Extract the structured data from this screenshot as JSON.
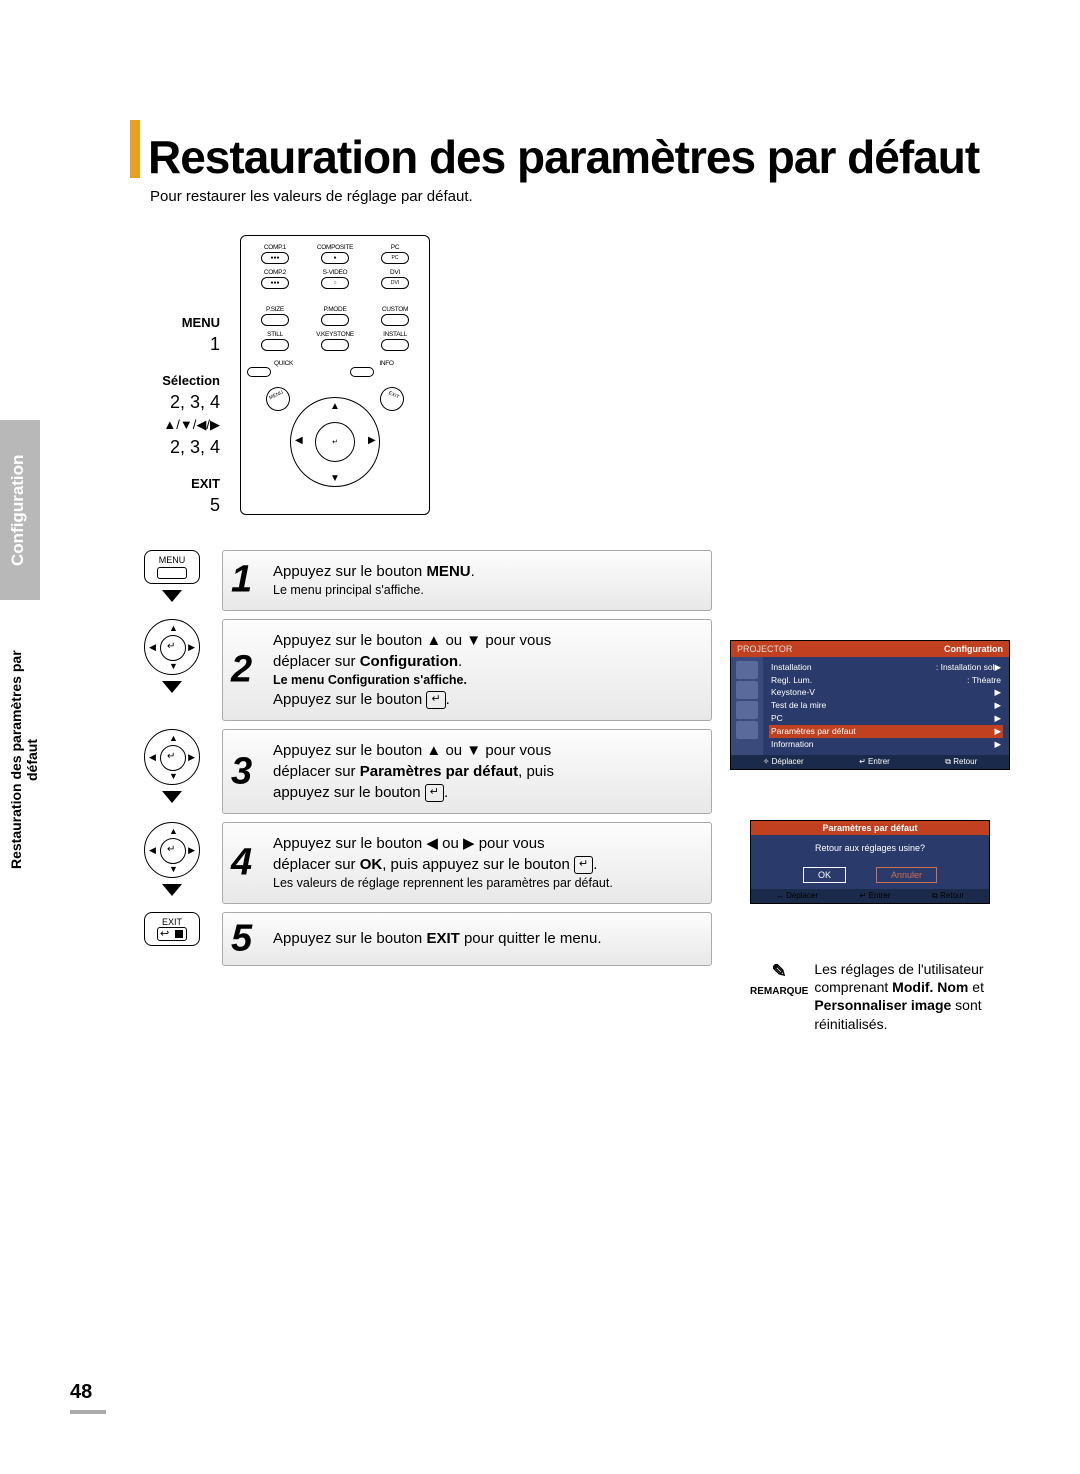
{
  "page": {
    "title": "Restauration des paramètres par défaut",
    "subtitle": "Pour restaurer les valeurs de réglage par défaut.",
    "number": "48"
  },
  "side_tabs": {
    "gray": "Configuration",
    "black": "Restauration des paramètres par défaut"
  },
  "remote_labels": {
    "menu": "MENU",
    "menu_num": "1",
    "selection": "Sélection",
    "selection_num": "2, 3, 4",
    "arrows": "▲/▼/◀/▶",
    "arrows_num": "2, 3, 4",
    "exit": "EXIT",
    "exit_num": "5"
  },
  "remote_buttons": {
    "row1": [
      "COMP.1",
      "COMPOSITE",
      "PC"
    ],
    "row2": [
      "COMP.2",
      "S-VIDEO",
      "DVI"
    ],
    "row3": [
      "P.SIZE",
      "P.MODE",
      "CUSTOM"
    ],
    "row4": [
      "STILL",
      "V.KEYSTONE",
      "INSTALL"
    ],
    "small": [
      "QUICK",
      "INFO"
    ],
    "side_left": "MENU",
    "side_right": "EXIT",
    "row1_inner": [
      "",
      "●",
      "PC"
    ],
    "row2_inner": [
      "",
      "○",
      "DVI"
    ]
  },
  "steps": [
    {
      "num": "1",
      "icon_label": "MENU",
      "line1_pre": "Appuyez sur le bouton ",
      "line1_bold": "MENU",
      "line1_post": ".",
      "small": "Le menu principal s'affiche."
    },
    {
      "num": "2",
      "line1": "Appuyez sur le bouton ▲ ou ▼ pour vous",
      "line2_pre": "déplacer sur ",
      "line2_bold": "Configuration",
      "line2_post": ".",
      "small": "Le menu Configuration s'affiche.",
      "line3": "Appuyez sur le bouton "
    },
    {
      "num": "3",
      "line1": "Appuyez sur le bouton ▲ ou ▼ pour vous",
      "line2_pre": "déplacer sur ",
      "line2_bold": "Paramètres par défaut",
      "line2_post": ", puis",
      "line3": "appuyez sur le bouton "
    },
    {
      "num": "4",
      "line1": "Appuyez sur le bouton ◀ ou ▶ pour vous",
      "line2_pre": "déplacer sur ",
      "line2_bold": "OK",
      "line2_post": ", puis appuyez sur le bouton ",
      "small": "Les valeurs de réglage reprennent les paramètres par défaut."
    },
    {
      "num": "5",
      "icon_label": "EXIT",
      "line1_pre": "Appuyez sur le bouton ",
      "line1_bold": "EXIT",
      "line1_post": " pour quitter le menu."
    }
  ],
  "osd1": {
    "header_left": "PROJECTOR",
    "header_right": "Configuration",
    "items": [
      {
        "l": "Installation",
        "r": ": Installation sol▶"
      },
      {
        "l": "Regl. Lum.",
        "r": ": Théatre"
      },
      {
        "l": "Keystone-V",
        "r": "▶"
      },
      {
        "l": "Test de la mire",
        "r": "▶"
      },
      {
        "l": "PC",
        "r": "▶"
      },
      {
        "l": "Paramètres par défaut",
        "r": "▶",
        "hl": true
      },
      {
        "l": "Information",
        "r": "▶"
      }
    ],
    "footer": [
      "✧ Déplacer",
      "↵ Entrer",
      "⧉ Retour"
    ]
  },
  "osd2": {
    "title": "Paramètres par défaut",
    "body": "Retour aux réglages usine?",
    "ok": "OK",
    "cancel": "Annuler",
    "footer": [
      "↔ Déplacer",
      "↵ Entrer",
      "⧉ Retour"
    ]
  },
  "remark": {
    "label": "REMARQUE",
    "icon": "✎",
    "text_pre": "Les réglages de l'utilisateur comprenant ",
    "bold1": "Modif. Nom",
    "mid": " et ",
    "bold2": "Personnaliser image",
    "text_post": " sont réinitialisés."
  }
}
